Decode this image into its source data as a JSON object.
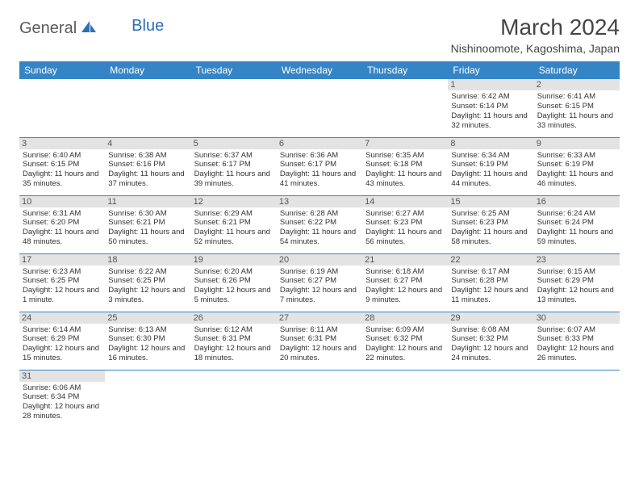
{
  "logo": {
    "part1": "General",
    "part2": "Blue"
  },
  "title": "March 2024",
  "location": "Nishinoomote, Kagoshima, Japan",
  "colors": {
    "header_bg": "#3585c6",
    "header_text": "#ffffff",
    "daynum_bg": "#e3e3e3",
    "row_divider": "#3585c6",
    "logo_gray": "#5a5a5a",
    "logo_blue": "#2b6fb5"
  },
  "weekdays": [
    "Sunday",
    "Monday",
    "Tuesday",
    "Wednesday",
    "Thursday",
    "Friday",
    "Saturday"
  ],
  "weeks": [
    [
      {
        "empty": true
      },
      {
        "empty": true
      },
      {
        "empty": true
      },
      {
        "empty": true
      },
      {
        "empty": true
      },
      {
        "day": "1",
        "sunrise": "Sunrise: 6:42 AM",
        "sunset": "Sunset: 6:14 PM",
        "daylight": "Daylight: 11 hours and 32 minutes."
      },
      {
        "day": "2",
        "sunrise": "Sunrise: 6:41 AM",
        "sunset": "Sunset: 6:15 PM",
        "daylight": "Daylight: 11 hours and 33 minutes."
      }
    ],
    [
      {
        "day": "3",
        "sunrise": "Sunrise: 6:40 AM",
        "sunset": "Sunset: 6:15 PM",
        "daylight": "Daylight: 11 hours and 35 minutes."
      },
      {
        "day": "4",
        "sunrise": "Sunrise: 6:38 AM",
        "sunset": "Sunset: 6:16 PM",
        "daylight": "Daylight: 11 hours and 37 minutes."
      },
      {
        "day": "5",
        "sunrise": "Sunrise: 6:37 AM",
        "sunset": "Sunset: 6:17 PM",
        "daylight": "Daylight: 11 hours and 39 minutes."
      },
      {
        "day": "6",
        "sunrise": "Sunrise: 6:36 AM",
        "sunset": "Sunset: 6:17 PM",
        "daylight": "Daylight: 11 hours and 41 minutes."
      },
      {
        "day": "7",
        "sunrise": "Sunrise: 6:35 AM",
        "sunset": "Sunset: 6:18 PM",
        "daylight": "Daylight: 11 hours and 43 minutes."
      },
      {
        "day": "8",
        "sunrise": "Sunrise: 6:34 AM",
        "sunset": "Sunset: 6:19 PM",
        "daylight": "Daylight: 11 hours and 44 minutes."
      },
      {
        "day": "9",
        "sunrise": "Sunrise: 6:33 AM",
        "sunset": "Sunset: 6:19 PM",
        "daylight": "Daylight: 11 hours and 46 minutes."
      }
    ],
    [
      {
        "day": "10",
        "sunrise": "Sunrise: 6:31 AM",
        "sunset": "Sunset: 6:20 PM",
        "daylight": "Daylight: 11 hours and 48 minutes."
      },
      {
        "day": "11",
        "sunrise": "Sunrise: 6:30 AM",
        "sunset": "Sunset: 6:21 PM",
        "daylight": "Daylight: 11 hours and 50 minutes."
      },
      {
        "day": "12",
        "sunrise": "Sunrise: 6:29 AM",
        "sunset": "Sunset: 6:21 PM",
        "daylight": "Daylight: 11 hours and 52 minutes."
      },
      {
        "day": "13",
        "sunrise": "Sunrise: 6:28 AM",
        "sunset": "Sunset: 6:22 PM",
        "daylight": "Daylight: 11 hours and 54 minutes."
      },
      {
        "day": "14",
        "sunrise": "Sunrise: 6:27 AM",
        "sunset": "Sunset: 6:23 PM",
        "daylight": "Daylight: 11 hours and 56 minutes."
      },
      {
        "day": "15",
        "sunrise": "Sunrise: 6:25 AM",
        "sunset": "Sunset: 6:23 PM",
        "daylight": "Daylight: 11 hours and 58 minutes."
      },
      {
        "day": "16",
        "sunrise": "Sunrise: 6:24 AM",
        "sunset": "Sunset: 6:24 PM",
        "daylight": "Daylight: 11 hours and 59 minutes."
      }
    ],
    [
      {
        "day": "17",
        "sunrise": "Sunrise: 6:23 AM",
        "sunset": "Sunset: 6:25 PM",
        "daylight": "Daylight: 12 hours and 1 minute."
      },
      {
        "day": "18",
        "sunrise": "Sunrise: 6:22 AM",
        "sunset": "Sunset: 6:25 PM",
        "daylight": "Daylight: 12 hours and 3 minutes."
      },
      {
        "day": "19",
        "sunrise": "Sunrise: 6:20 AM",
        "sunset": "Sunset: 6:26 PM",
        "daylight": "Daylight: 12 hours and 5 minutes."
      },
      {
        "day": "20",
        "sunrise": "Sunrise: 6:19 AM",
        "sunset": "Sunset: 6:27 PM",
        "daylight": "Daylight: 12 hours and 7 minutes."
      },
      {
        "day": "21",
        "sunrise": "Sunrise: 6:18 AM",
        "sunset": "Sunset: 6:27 PM",
        "daylight": "Daylight: 12 hours and 9 minutes."
      },
      {
        "day": "22",
        "sunrise": "Sunrise: 6:17 AM",
        "sunset": "Sunset: 6:28 PM",
        "daylight": "Daylight: 12 hours and 11 minutes."
      },
      {
        "day": "23",
        "sunrise": "Sunrise: 6:15 AM",
        "sunset": "Sunset: 6:29 PM",
        "daylight": "Daylight: 12 hours and 13 minutes."
      }
    ],
    [
      {
        "day": "24",
        "sunrise": "Sunrise: 6:14 AM",
        "sunset": "Sunset: 6:29 PM",
        "daylight": "Daylight: 12 hours and 15 minutes."
      },
      {
        "day": "25",
        "sunrise": "Sunrise: 6:13 AM",
        "sunset": "Sunset: 6:30 PM",
        "daylight": "Daylight: 12 hours and 16 minutes."
      },
      {
        "day": "26",
        "sunrise": "Sunrise: 6:12 AM",
        "sunset": "Sunset: 6:31 PM",
        "daylight": "Daylight: 12 hours and 18 minutes."
      },
      {
        "day": "27",
        "sunrise": "Sunrise: 6:11 AM",
        "sunset": "Sunset: 6:31 PM",
        "daylight": "Daylight: 12 hours and 20 minutes."
      },
      {
        "day": "28",
        "sunrise": "Sunrise: 6:09 AM",
        "sunset": "Sunset: 6:32 PM",
        "daylight": "Daylight: 12 hours and 22 minutes."
      },
      {
        "day": "29",
        "sunrise": "Sunrise: 6:08 AM",
        "sunset": "Sunset: 6:32 PM",
        "daylight": "Daylight: 12 hours and 24 minutes."
      },
      {
        "day": "30",
        "sunrise": "Sunrise: 6:07 AM",
        "sunset": "Sunset: 6:33 PM",
        "daylight": "Daylight: 12 hours and 26 minutes."
      }
    ],
    [
      {
        "day": "31",
        "sunrise": "Sunrise: 6:06 AM",
        "sunset": "Sunset: 6:34 PM",
        "daylight": "Daylight: 12 hours and 28 minutes."
      },
      {
        "empty": true
      },
      {
        "empty": true
      },
      {
        "empty": true
      },
      {
        "empty": true
      },
      {
        "empty": true
      },
      {
        "empty": true
      }
    ]
  ]
}
